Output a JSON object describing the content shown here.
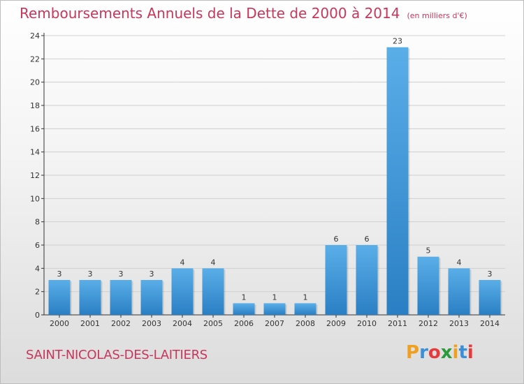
{
  "title": "Remboursements Annuels de la Dette de 2000 à 2014",
  "unit": "(en milliers d'€)",
  "commune": "SAINT-NICOLAS-DES-LAITIERS",
  "logo": {
    "letters": [
      "P",
      "r",
      "o",
      "x",
      "i",
      "t",
      "i"
    ],
    "colors": [
      "#f0a020",
      "#3a8fd8",
      "#e83a3a",
      "#2a9a3a",
      "#f0a020",
      "#3a8fd8",
      "#e83a3a"
    ]
  },
  "colors": {
    "bar_top": "#5aaee8",
    "bar_bottom": "#2a7fc4",
    "axis": "#333333",
    "grid": "#cfcfcf",
    "title": "#c8365a"
  },
  "chart_data": {
    "type": "bar",
    "categories": [
      "2000",
      "2001",
      "2002",
      "2003",
      "2004",
      "2005",
      "2006",
      "2007",
      "2008",
      "2009",
      "2010",
      "2011",
      "2012",
      "2013",
      "2014"
    ],
    "values": [
      3,
      3,
      3,
      3,
      4,
      4,
      1,
      1,
      1,
      6,
      6,
      23,
      5,
      4,
      3
    ],
    "title": "Remboursements Annuels de la Dette de 2000 à 2014",
    "ylabel": "",
    "xlabel": "",
    "ylim": [
      0,
      24
    ],
    "yticks": [
      0,
      2,
      4,
      6,
      8,
      10,
      12,
      14,
      16,
      18,
      20,
      22,
      24
    ],
    "grid": true,
    "legend": "none"
  }
}
